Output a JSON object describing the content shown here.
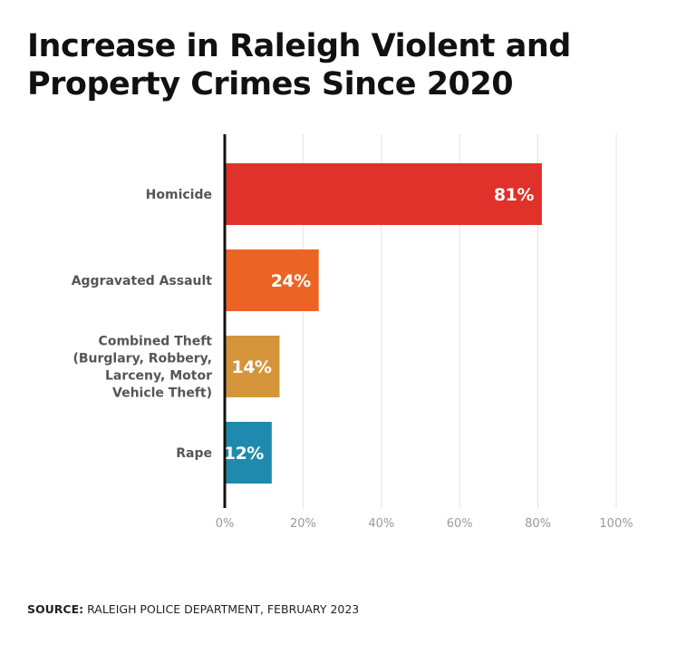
{
  "chart_data": {
    "type": "bar",
    "orientation": "horizontal",
    "title_lines": [
      "Increase in Raleigh Violent and",
      "Property Crimes Since 2020"
    ],
    "categories": [
      {
        "name": "homicide",
        "lines": [
          "Homicide"
        ],
        "value": 81,
        "label": "81%",
        "color": "#e0312a"
      },
      {
        "name": "aggravated-assault",
        "lines": [
          "Aggravated Assault"
        ],
        "value": 24,
        "label": "24%",
        "color": "#ec6424"
      },
      {
        "name": "combined-theft",
        "lines": [
          "Combined Theft",
          "(Burglary, Robbery,",
          "Larceny, Motor",
          "Vehicle Theft)"
        ],
        "value": 14,
        "label": "14%",
        "color": "#d4953a"
      },
      {
        "name": "rape",
        "lines": [
          "Rape"
        ],
        "value": 12,
        "label": "12%",
        "color": "#1f8aad"
      }
    ],
    "xlim": [
      0,
      100
    ],
    "ticks": [
      {
        "value": 0,
        "label": "0%"
      },
      {
        "value": 20,
        "label": "20%"
      },
      {
        "value": 40,
        "label": "40%"
      },
      {
        "value": 60,
        "label": "60%"
      },
      {
        "value": 80,
        "label": "80%"
      },
      {
        "value": 100,
        "label": "100%"
      }
    ],
    "grid": true
  },
  "source": {
    "prefix": "SOURCE:",
    "text": " RALEIGH POLICE DEPARTMENT, FEBRUARY 2023"
  }
}
